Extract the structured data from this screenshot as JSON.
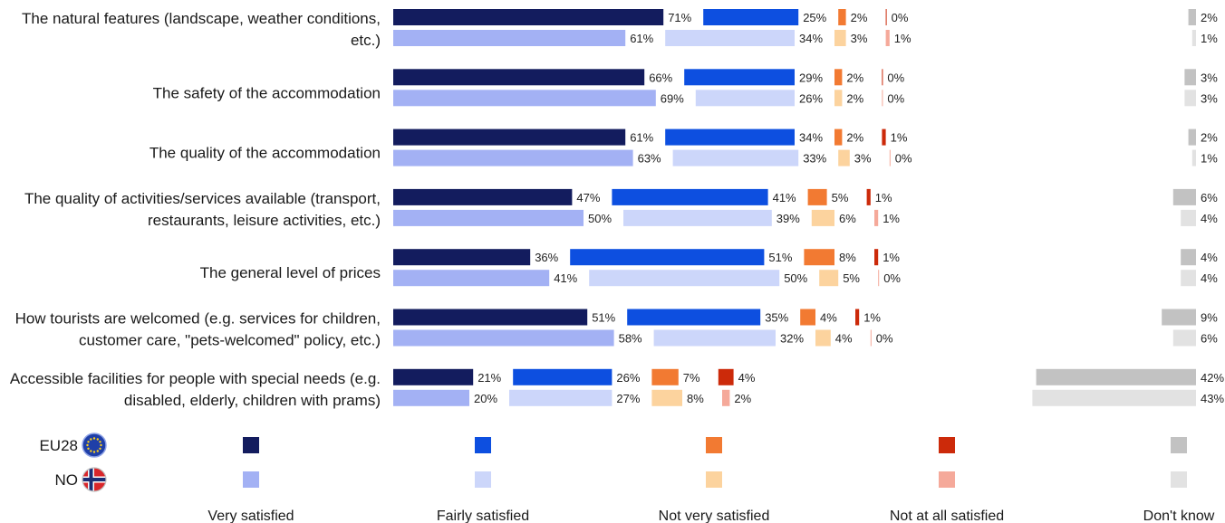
{
  "chart_data": {
    "type": "bar",
    "stacked": true,
    "orientation": "horizontal",
    "categories": [
      [
        "The natural features (landscape, weather conditions,",
        "etc.)"
      ],
      [
        "The safety of the accommodation"
      ],
      [
        "The quality of the accommodation"
      ],
      [
        "The quality of activities/services available (transport,",
        "restaurants, leisure activities, etc.)"
      ],
      [
        "The general level of prices"
      ],
      [
        "How tourists are welcomed (e.g. services for children,",
        "customer care, \"pets-welcomed\" policy, etc.)"
      ],
      [
        "Accessible facilities for people with special needs (e.g.",
        "disabled, elderly, children with prams)"
      ]
    ],
    "groups": [
      {
        "name": "EU28",
        "flag": "eu-flag-icon"
      },
      {
        "name": "NO",
        "flag": "norway-flag-icon"
      }
    ],
    "series": [
      {
        "name": "Very satisfied",
        "colors": [
          "#131c5e",
          "#a3b1f4"
        ],
        "values": [
          [
            71,
            61
          ],
          [
            66,
            69
          ],
          [
            61,
            63
          ],
          [
            47,
            50
          ],
          [
            36,
            41
          ],
          [
            51,
            58
          ],
          [
            21,
            20
          ]
        ]
      },
      {
        "name": "Fairly satisfied",
        "colors": [
          "#0d4fe0",
          "#ccd6fa"
        ],
        "values": [
          [
            25,
            34
          ],
          [
            29,
            26
          ],
          [
            34,
            33
          ],
          [
            41,
            39
          ],
          [
            51,
            50
          ],
          [
            35,
            32
          ],
          [
            26,
            27
          ]
        ]
      },
      {
        "name": "Not very satisfied",
        "colors": [
          "#f27a32",
          "#fcd39e"
        ],
        "values": [
          [
            2,
            3
          ],
          [
            2,
            2
          ],
          [
            2,
            3
          ],
          [
            5,
            6
          ],
          [
            8,
            5
          ],
          [
            4,
            4
          ],
          [
            7,
            8
          ]
        ]
      },
      {
        "name": "Not at all satisfied",
        "colors": [
          "#cc2a0a",
          "#f5a99a"
        ],
        "values": [
          [
            0,
            1
          ],
          [
            0,
            0
          ],
          [
            1,
            0
          ],
          [
            1,
            1
          ],
          [
            1,
            0
          ],
          [
            1,
            0
          ],
          [
            4,
            2
          ]
        ]
      },
      {
        "name": "Don't know",
        "colors": [
          "#c2c2c2",
          "#e2e2e2"
        ],
        "values": [
          [
            2,
            1
          ],
          [
            3,
            3
          ],
          [
            2,
            1
          ],
          [
            6,
            4
          ],
          [
            4,
            4
          ],
          [
            9,
            6
          ],
          [
            42,
            43
          ]
        ]
      }
    ],
    "value_suffix": "%",
    "grid": false,
    "legend_position": "bottom"
  }
}
